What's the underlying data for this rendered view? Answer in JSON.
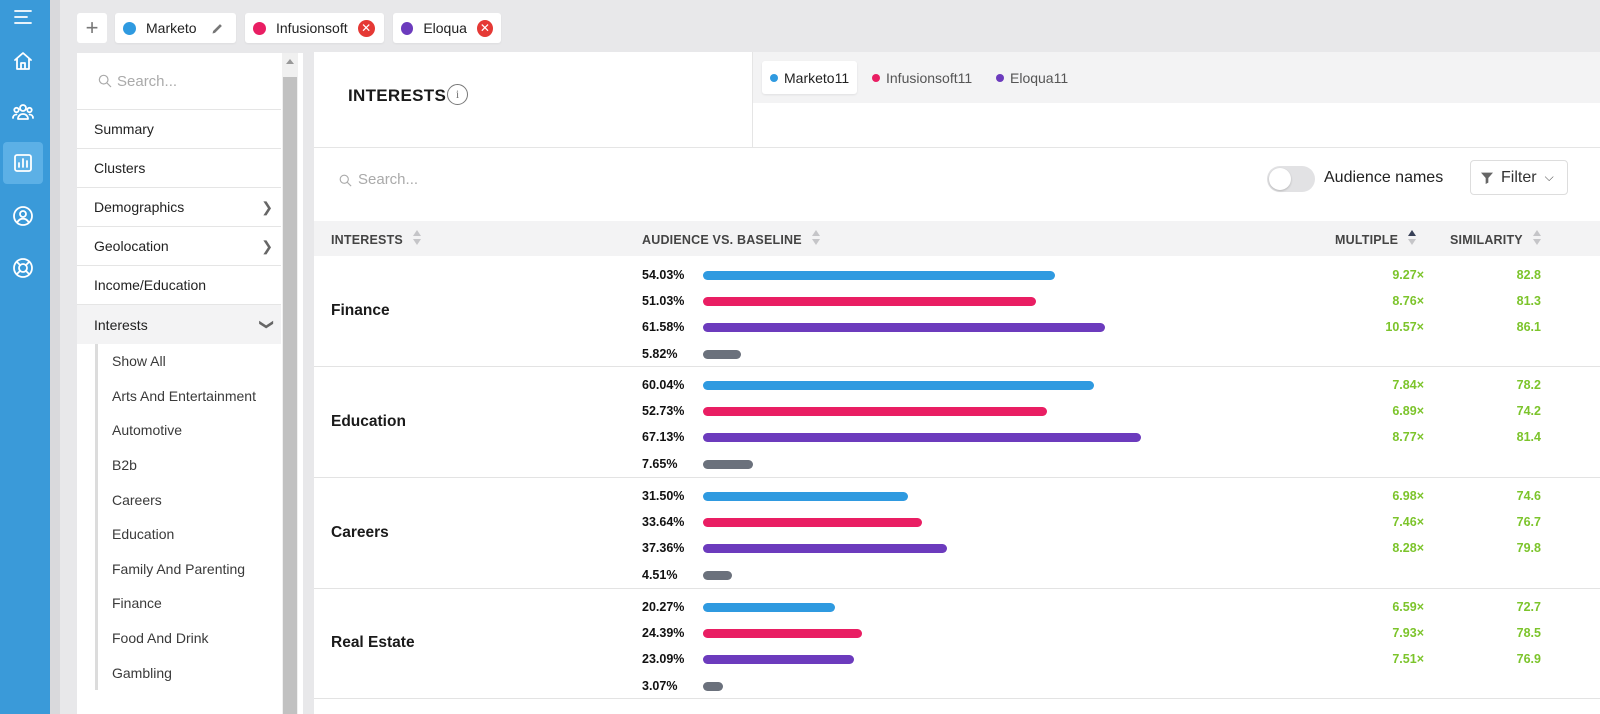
{
  "colors": {
    "marketo": "#2f9ae0",
    "infusionsoft": "#e91e63",
    "eloqua": "#6c3bbd",
    "baseline": "#6b717c",
    "rail": "#3a9ad9",
    "positive": "#7cc42b"
  },
  "nav_icons": [
    "menu-icon",
    "home-icon",
    "audiences-icon",
    "reports-icon",
    "profile-icon",
    "help-icon"
  ],
  "audience_tabs": [
    {
      "label": "Marketo",
      "color": "#2f9ae0",
      "action_icon": "edit-icon"
    },
    {
      "label": "Infusionsoft",
      "color": "#e91e63",
      "action_icon": "remove-icon"
    },
    {
      "label": "Eloqua",
      "color": "#6c3bbd",
      "action_icon": "remove-icon"
    }
  ],
  "sidebar": {
    "search_placeholder": "Search...",
    "items": [
      {
        "label": "Summary"
      },
      {
        "label": "Clusters"
      },
      {
        "label": "Demographics"
      },
      {
        "label": "Geolocation"
      },
      {
        "label": "Income/Education"
      },
      {
        "label": "Interests"
      }
    ],
    "sub_items": [
      "Show All",
      "Arts And Entertainment",
      "Automotive",
      "B2b",
      "Careers",
      "Education",
      "Family And Parenting",
      "Finance",
      "Food And Drink",
      "Gambling"
    ]
  },
  "panel": {
    "title": "INTERESTS",
    "info_icon": "i",
    "legend": [
      {
        "label": "Marketo11",
        "color": "#2f9ae0"
      },
      {
        "label": "Infusionsoft11",
        "color": "#e91e63"
      },
      {
        "label": "Eloqua11",
        "color": "#6c3bbd"
      }
    ],
    "search_placeholder": "Search...",
    "toggle_label": "Audience names",
    "filter_label": "Filter"
  },
  "table": {
    "headers": {
      "interests": "INTERESTS",
      "audience": "AUDIENCE VS. BASELINE",
      "multiple": "MULTIPLE",
      "similarity": "SIMILARITY"
    },
    "rows": [
      {
        "name": "Finance",
        "values": [
          {
            "pct": "54.03%",
            "value": 54.03,
            "multiple": "9.27×",
            "similarity": "82.8"
          },
          {
            "pct": "51.03%",
            "value": 51.03,
            "multiple": "8.76×",
            "similarity": "81.3"
          },
          {
            "pct": "61.58%",
            "value": 61.58,
            "multiple": "10.57×",
            "similarity": "86.1"
          },
          {
            "pct": "5.82%",
            "value": 5.82,
            "multiple": "",
            "similarity": ""
          }
        ]
      },
      {
        "name": "Education",
        "values": [
          {
            "pct": "60.04%",
            "value": 60.04,
            "multiple": "7.84×",
            "similarity": "78.2"
          },
          {
            "pct": "52.73%",
            "value": 52.73,
            "multiple": "6.89×",
            "similarity": "74.2"
          },
          {
            "pct": "67.13%",
            "value": 67.13,
            "multiple": "8.77×",
            "similarity": "81.4"
          },
          {
            "pct": "7.65%",
            "value": 7.65,
            "multiple": "",
            "similarity": ""
          }
        ]
      },
      {
        "name": "Careers",
        "values": [
          {
            "pct": "31.50%",
            "value": 31.5,
            "multiple": "6.98×",
            "similarity": "74.6"
          },
          {
            "pct": "33.64%",
            "value": 33.64,
            "multiple": "7.46×",
            "similarity": "76.7"
          },
          {
            "pct": "37.36%",
            "value": 37.36,
            "multiple": "8.28×",
            "similarity": "79.8"
          },
          {
            "pct": "4.51%",
            "value": 4.51,
            "multiple": "",
            "similarity": ""
          }
        ]
      },
      {
        "name": "Real Estate",
        "values": [
          {
            "pct": "20.27%",
            "value": 20.27,
            "multiple": "6.59×",
            "similarity": "72.7"
          },
          {
            "pct": "24.39%",
            "value": 24.39,
            "multiple": "7.93×",
            "similarity": "78.5"
          },
          {
            "pct": "23.09%",
            "value": 23.09,
            "multiple": "7.51×",
            "similarity": "76.9"
          },
          {
            "pct": "3.07%",
            "value": 3.07,
            "multiple": "",
            "similarity": ""
          }
        ]
      }
    ]
  }
}
